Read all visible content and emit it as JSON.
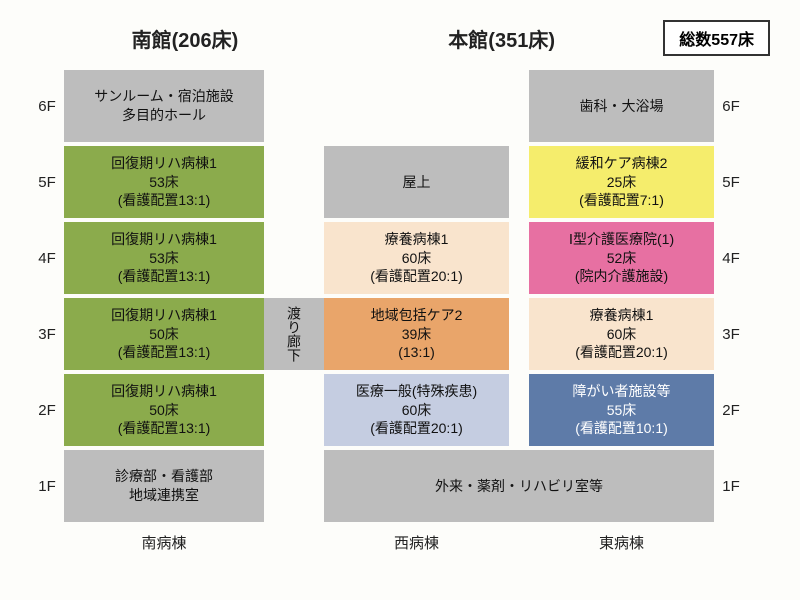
{
  "headers": {
    "south_building": "南館(206床)",
    "main_building": "本館(351床)",
    "total": "総数557床"
  },
  "colors": {
    "gray": "#bdbdbd",
    "green": "#8bab4c",
    "cream": "#f9e4cd",
    "orange": "#e9a56a",
    "lightblue": "#c5cde1",
    "yellow": "#f5ed6c",
    "pink": "#e770a2",
    "navy": "#5e7ba8",
    "background": "#fdfdfa",
    "text": "#111111"
  },
  "floors": [
    "6F",
    "5F",
    "4F",
    "3F",
    "2F",
    "1F"
  ],
  "corridor_label": "渡り廊下",
  "footer": {
    "south": "南病棟",
    "west": "西病棟",
    "east": "東病棟"
  },
  "cells": {
    "south_6f": {
      "lines": [
        "サンルーム・宿泊施設",
        "多目的ホール"
      ],
      "color": "gray"
    },
    "south_5f": {
      "lines": [
        "回復期リハ病棟1",
        "53床",
        "(看護配置13:1)"
      ],
      "color": "green"
    },
    "south_4f": {
      "lines": [
        "回復期リハ病棟1",
        "53床",
        "(看護配置13:1)"
      ],
      "color": "green"
    },
    "south_3f": {
      "lines": [
        "回復期リハ病棟1",
        "50床",
        "(看護配置13:1)"
      ],
      "color": "green"
    },
    "south_2f": {
      "lines": [
        "回復期リハ病棟1",
        "50床",
        "(看護配置13:1)"
      ],
      "color": "green"
    },
    "south_1f": {
      "lines": [
        "診療部・看護部",
        "地域連携室"
      ],
      "color": "gray"
    },
    "west_6f": null,
    "west_5f": {
      "lines": [
        "屋上"
      ],
      "color": "gray"
    },
    "west_4f": {
      "lines": [
        "療養病棟1",
        "60床",
        "(看護配置20:1)"
      ],
      "color": "cream"
    },
    "west_3f": {
      "lines": [
        "地域包括ケア2",
        "39床",
        "(13:1)"
      ],
      "color": "orange"
    },
    "west_2f": {
      "lines": [
        "医療一般(特殊疾患)",
        "60床",
        "(看護配置20:1)"
      ],
      "color": "lightblue"
    },
    "east_6f": {
      "lines": [
        "歯科・大浴場"
      ],
      "color": "gray"
    },
    "east_5f": {
      "lines": [
        "緩和ケア病棟2",
        "25床",
        "(看護配置7:1)"
      ],
      "color": "yellow"
    },
    "east_4f": {
      "lines": [
        "Ⅰ型介護医療院(1)",
        "52床",
        "(院内介護施設)"
      ],
      "color": "pink"
    },
    "east_3f": {
      "lines": [
        "療養病棟1",
        "60床",
        "(看護配置20:1)"
      ],
      "color": "cream"
    },
    "east_2f": {
      "lines": [
        "障がい者施設等",
        "55床",
        "(看護配置10:1)"
      ],
      "color": "navy"
    },
    "main_1f": {
      "lines": [
        "外来・薬剤・リハビリ室等"
      ],
      "color": "gray"
    }
  }
}
